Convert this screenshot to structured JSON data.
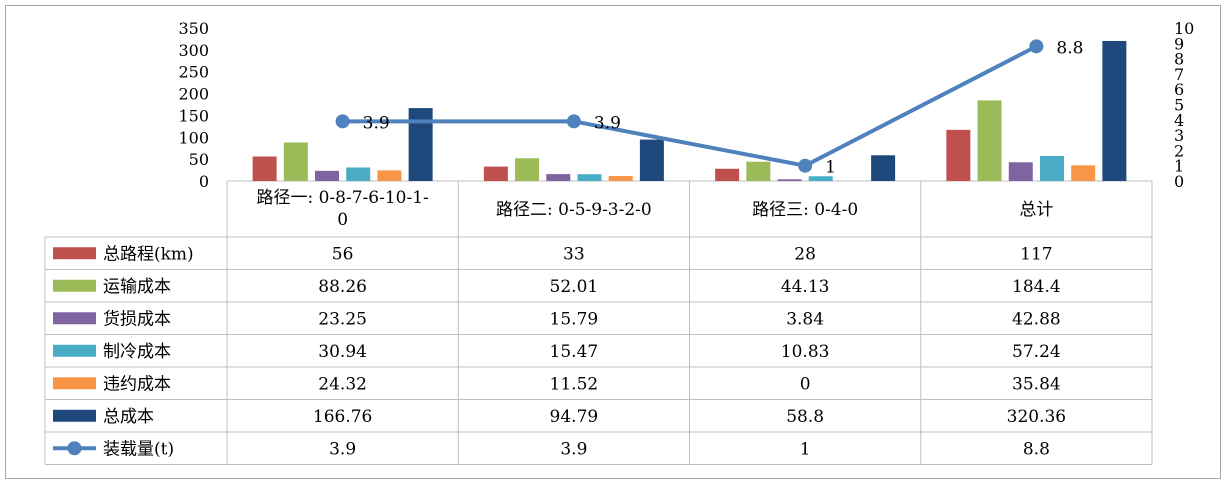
{
  "chart_data": {
    "type": "bar",
    "categories": [
      "路径一: 0-8-7-6-10-1-0",
      "路径二: 0-5-9-3-2-0",
      "路径三: 0-4-0",
      "总计"
    ],
    "series": [
      {
        "name": "总路程(km)",
        "color": "#c0504d",
        "values": [
          56,
          33,
          28,
          117
        ]
      },
      {
        "name": "运输成本",
        "color": "#9bbb59",
        "values": [
          88.26,
          52.01,
          44.13,
          184.4
        ]
      },
      {
        "name": "货损成本",
        "color": "#8064a2",
        "values": [
          23.25,
          15.79,
          3.84,
          42.88
        ]
      },
      {
        "name": "制冷成本",
        "color": "#4bacc6",
        "values": [
          30.94,
          15.47,
          10.83,
          57.24
        ]
      },
      {
        "name": "违约成本",
        "color": "#f79646",
        "values": [
          24.32,
          11.52,
          0,
          35.84
        ]
      },
      {
        "name": "总成本",
        "color": "#1f497d",
        "values": [
          166.76,
          94.79,
          58.8,
          320.36
        ]
      }
    ],
    "line_series": {
      "name": "装载量(t)",
      "color": "#4f81bd",
      "values": [
        3.9,
        3.9,
        1,
        8.8
      ],
      "axis": "right"
    },
    "cell_labels": [
      [
        "56",
        "33",
        "28",
        "117"
      ],
      [
        "88.26",
        "52.01",
        "44.13",
        "184.4"
      ],
      [
        "23.25",
        "15.79",
        "3.84",
        "42.88"
      ],
      [
        "30.94",
        "15.47",
        "10.83",
        "57.24"
      ],
      [
        "24.32",
        "11.52",
        "0",
        "35.84"
      ],
      [
        "166.76",
        "94.79",
        "58.8",
        "320.36"
      ],
      [
        "3.9",
        "3.9",
        "1",
        "8.8"
      ]
    ],
    "line_data_labels": [
      "3.9",
      "3.9",
      "1",
      "8.8"
    ],
    "left_ticks": [
      "0",
      "50",
      "100",
      "150",
      "200",
      "250",
      "300",
      "350"
    ],
    "right_ticks": [
      "0",
      "1",
      "2",
      "3",
      "4",
      "5",
      "6",
      "7",
      "8",
      "9",
      "10"
    ],
    "ylim": [
      0,
      350
    ],
    "y2lim": [
      0,
      10
    ],
    "grid": false,
    "legend": "data-table"
  }
}
